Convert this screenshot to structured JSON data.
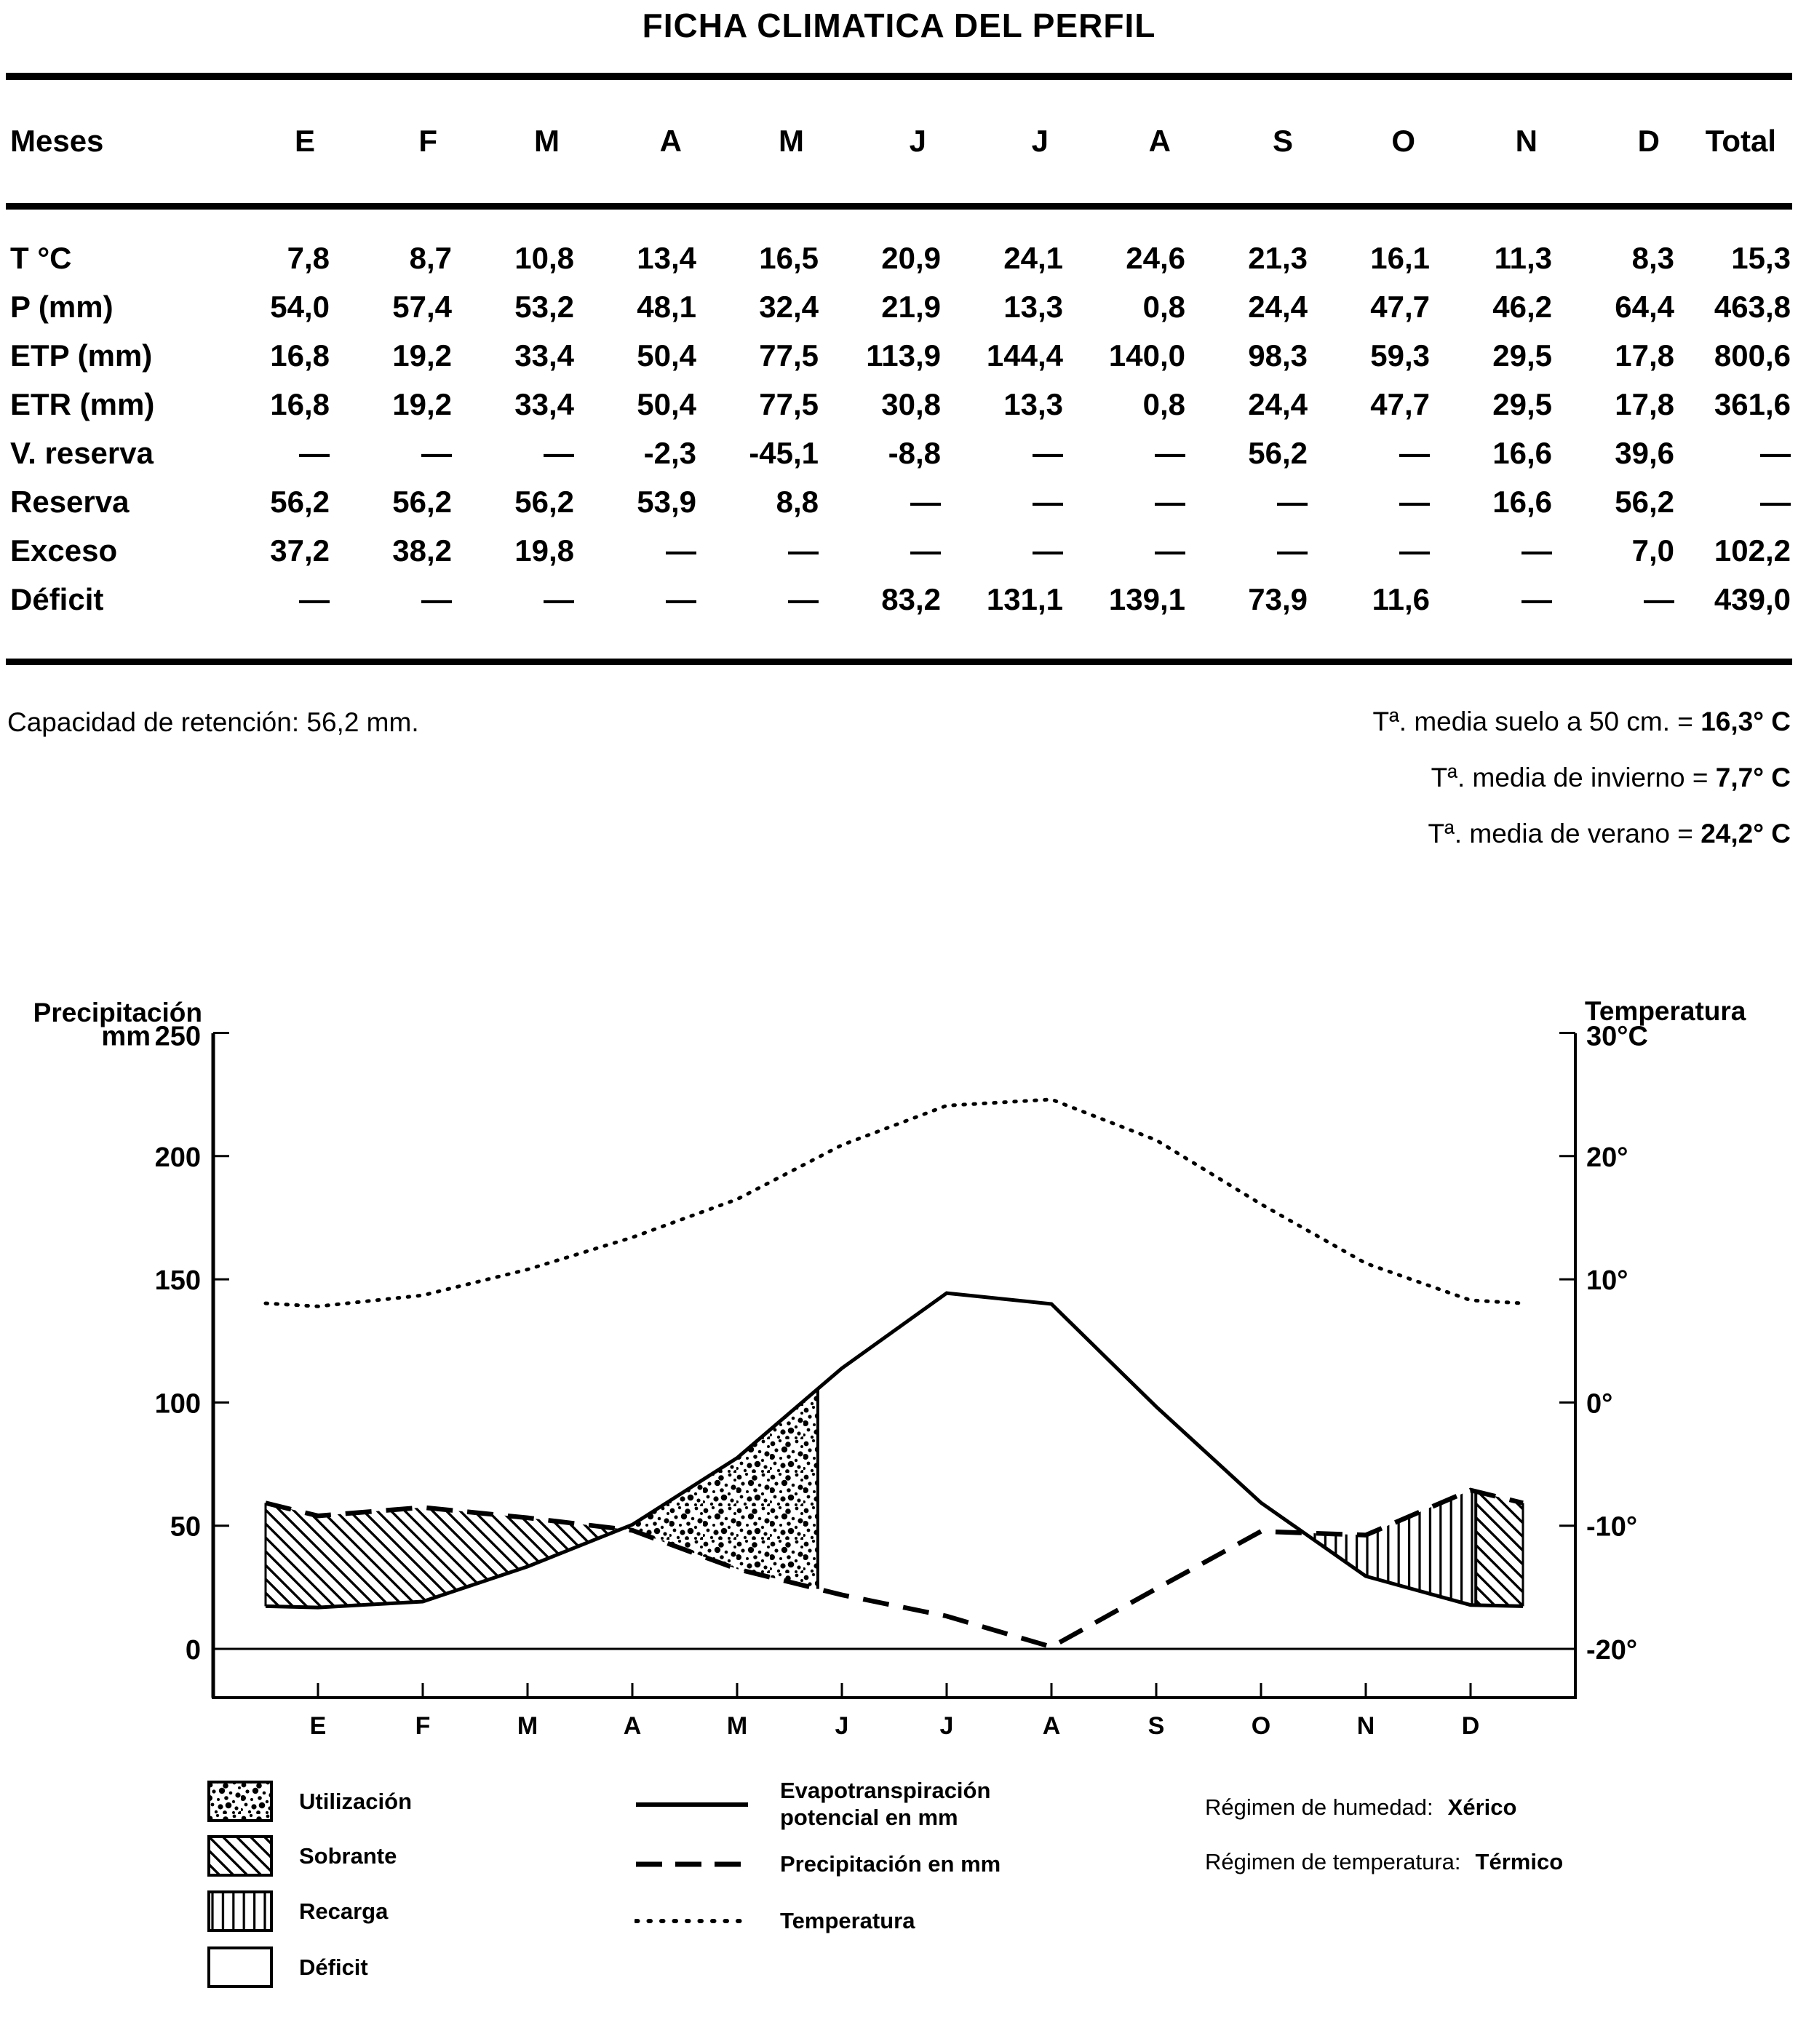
{
  "title": "FICHA CLIMATICA DEL PERFIL",
  "table": {
    "header": [
      "Meses",
      "E",
      "F",
      "M",
      "A",
      "M",
      "J",
      "J",
      "A",
      "S",
      "O",
      "N",
      "D",
      "Total"
    ],
    "rows": [
      {
        "label": "T °C",
        "values": [
          "7,8",
          "8,7",
          "10,8",
          "13,4",
          "16,5",
          "20,9",
          "24,1",
          "24,6",
          "21,3",
          "16,1",
          "11,3",
          "8,3",
          "15,3"
        ]
      },
      {
        "label": "P (mm)",
        "values": [
          "54,0",
          "57,4",
          "53,2",
          "48,1",
          "32,4",
          "21,9",
          "13,3",
          "0,8",
          "24,4",
          "47,7",
          "46,2",
          "64,4",
          "463,8"
        ]
      },
      {
        "label": "ETP (mm)",
        "values": [
          "16,8",
          "19,2",
          "33,4",
          "50,4",
          "77,5",
          "113,9",
          "144,4",
          "140,0",
          "98,3",
          "59,3",
          "29,5",
          "17,8",
          "800,6"
        ]
      },
      {
        "label": "ETR (mm)",
        "values": [
          "16,8",
          "19,2",
          "33,4",
          "50,4",
          "77,5",
          "30,8",
          "13,3",
          "0,8",
          "24,4",
          "47,7",
          "29,5",
          "17,8",
          "361,6"
        ]
      },
      {
        "label": "V. reserva",
        "values": [
          "—",
          "—",
          "—",
          "-2,3",
          "-45,1",
          "-8,8",
          "—",
          "—",
          "56,2",
          "—",
          "16,6",
          "39,6",
          "—"
        ]
      },
      {
        "label": "Reserva",
        "values": [
          "56,2",
          "56,2",
          "56,2",
          "53,9",
          "8,8",
          "—",
          "—",
          "—",
          "—",
          "—",
          "16,6",
          "56,2",
          "—"
        ]
      },
      {
        "label": "Exceso",
        "values": [
          "37,2",
          "38,2",
          "19,8",
          "—",
          "—",
          "—",
          "—",
          "—",
          "—",
          "—",
          "—",
          "7,0",
          "102,2"
        ]
      },
      {
        "label": "Déficit",
        "values": [
          "—",
          "—",
          "—",
          "—",
          "—",
          "83,2",
          "131,1",
          "139,1",
          "73,9",
          "11,6",
          "—",
          "—",
          "439,0"
        ]
      }
    ]
  },
  "notes": {
    "retention": "Capacidad de retención: 56,2 mm.",
    "temperatures": [
      {
        "label": "Tª. media suelo a 50 cm. =",
        "value": "16,3° C"
      },
      {
        "label": "Tª. media de invierno =",
        "value": "7,7° C"
      },
      {
        "label": "Tª. media de verano =",
        "value": "24,2° C"
      }
    ]
  },
  "chart_data": {
    "type": "line",
    "categories": [
      "E",
      "F",
      "M",
      "A",
      "M",
      "J",
      "J",
      "A",
      "S",
      "O",
      "N",
      "D"
    ],
    "series": [
      {
        "name": "Evapotranspiración potencial en mm",
        "style": "solid",
        "axis": "left",
        "values": [
          16.8,
          19.2,
          33.4,
          50.4,
          77.5,
          113.9,
          144.4,
          140.0,
          98.3,
          59.3,
          29.5,
          17.8
        ]
      },
      {
        "name": "Precipitación en mm",
        "style": "dashed",
        "axis": "left",
        "values": [
          54.0,
          57.4,
          53.2,
          48.1,
          32.4,
          21.9,
          13.3,
          0.8,
          24.4,
          47.7,
          46.2,
          64.4
        ]
      },
      {
        "name": "Temperatura",
        "style": "dotted",
        "axis": "right",
        "values": [
          7.8,
          8.7,
          10.8,
          13.4,
          16.5,
          20.9,
          24.1,
          24.6,
          21.3,
          16.1,
          11.3,
          8.3
        ]
      }
    ],
    "left_axis": {
      "title": "Precipitación",
      "unit": "mm",
      "ticks": [
        250,
        200,
        150,
        100,
        50,
        0
      ],
      "range": [
        0,
        250
      ]
    },
    "right_axis": {
      "title": "Temperatura",
      "top_tick": "30°C",
      "ticks": [
        "20°",
        "10°",
        "0°",
        "-10°",
        "-20°"
      ],
      "range": [
        -20,
        30
      ]
    },
    "regions": [
      {
        "name": "Sobrante",
        "pattern": "hatch",
        "top": "precipitacion",
        "from": -0.5,
        "to": 2.896
      },
      {
        "name": "Utilización",
        "pattern": "stipple",
        "top": "etp",
        "from": 2.896,
        "to": 4.77
      },
      {
        "name": "Déficit",
        "pattern": "none",
        "top": "etp",
        "from": 4.77,
        "to": 9.41
      },
      {
        "name": "Recarga",
        "pattern": "vlines",
        "top": "precipitacion",
        "from": 9.41,
        "to": 11.05
      },
      {
        "name": "Sobrante",
        "pattern": "hatch",
        "top": "precipitacion",
        "from": 11.05,
        "to": 11.5
      }
    ],
    "boundaries": [
      {
        "at": -0.5,
        "style": "solid"
      },
      {
        "at": 4.77,
        "style": "solid"
      },
      {
        "at": 11.05,
        "style": "solid"
      },
      {
        "at": 11.5,
        "style": "solid"
      }
    ],
    "grid": false,
    "edge_extension": "curves extend half a month past E and D at the D/E mean value"
  },
  "legend": {
    "patterns": [
      {
        "label": "Utilización",
        "pattern": "stipple"
      },
      {
        "label": "Sobrante",
        "pattern": "hatch"
      },
      {
        "label": "Recarga",
        "pattern": "vlines"
      },
      {
        "label": "Déficit",
        "pattern": "none"
      }
    ],
    "lines": [
      {
        "label": "Evapotranspiración potencial en mm",
        "style": "solid"
      },
      {
        "label": "Precipitación en mm",
        "style": "dashed"
      },
      {
        "label": "Temperatura",
        "style": "dotted"
      }
    ],
    "regimes": [
      {
        "label": "Régimen de humedad:",
        "value": "Xérico"
      },
      {
        "label": "Régimen de temperatura:",
        "value": "Térmico"
      }
    ]
  }
}
